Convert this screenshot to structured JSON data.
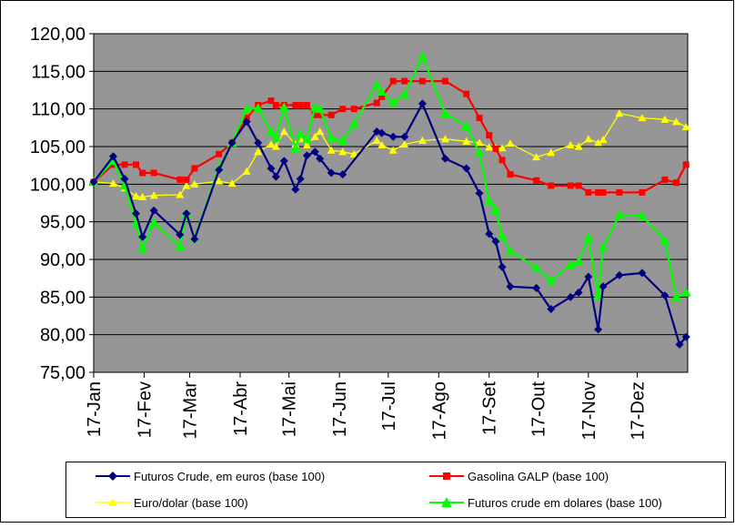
{
  "chart_data": {
    "type": "line",
    "title": "",
    "xlabel": "",
    "ylabel": "",
    "ylim": [
      75,
      120
    ],
    "yticks": [
      "75,00",
      "80,00",
      "85,00",
      "90,00",
      "95,00",
      "100,00",
      "105,00",
      "110,00",
      "115,00",
      "120,00"
    ],
    "xlim": [
      0,
      365
    ],
    "xticks": [
      {
        "x": 0,
        "label": "17-Jan"
      },
      {
        "x": 31,
        "label": "17-Fev"
      },
      {
        "x": 59,
        "label": "17-Mar"
      },
      {
        "x": 90,
        "label": "17-Abr"
      },
      {
        "x": 120,
        "label": "17-Mai"
      },
      {
        "x": 151,
        "label": "17-Jun"
      },
      {
        "x": 181,
        "label": "17-Jul"
      },
      {
        "x": 212,
        "label": "17-Ago"
      },
      {
        "x": 243,
        "label": "17-Set"
      },
      {
        "x": 273,
        "label": "17-Out"
      },
      {
        "x": 304,
        "label": "17-Nov"
      },
      {
        "x": 334,
        "label": "17-Dez"
      }
    ],
    "grid": "horizontal",
    "plot_background": "#969696",
    "legend_position": "bottom",
    "series": [
      {
        "name": "Futuros Crude, em euros (base 100)",
        "color": "#000080",
        "marker": "diamond",
        "points": [
          [
            0,
            100.3
          ],
          [
            12,
            103.7
          ],
          [
            19,
            100.7
          ],
          [
            26,
            96.1
          ],
          [
            30,
            93.0
          ],
          [
            37,
            96.5
          ],
          [
            53,
            93.3
          ],
          [
            57,
            96.1
          ],
          [
            62,
            92.7
          ],
          [
            77,
            101.9
          ],
          [
            85,
            105.5
          ],
          [
            94,
            108.3
          ],
          [
            101,
            105.5
          ],
          [
            109,
            102.1
          ],
          [
            112,
            101.0
          ],
          [
            117,
            103.1
          ],
          [
            124,
            99.3
          ],
          [
            127,
            100.7
          ],
          [
            131,
            103.8
          ],
          [
            136,
            104.3
          ],
          [
            139,
            103.4
          ],
          [
            146,
            101.5
          ],
          [
            153,
            101.3
          ],
          [
            174,
            107.0
          ],
          [
            177,
            106.8
          ],
          [
            184,
            106.3
          ],
          [
            191,
            106.3
          ],
          [
            202,
            110.7
          ],
          [
            216,
            103.4
          ],
          [
            229,
            102.1
          ],
          [
            237,
            98.8
          ],
          [
            243,
            93.4
          ],
          [
            247,
            92.4
          ],
          [
            251,
            89.0
          ],
          [
            256,
            86.4
          ],
          [
            272,
            86.2
          ],
          [
            281,
            83.4
          ],
          [
            293,
            85.0
          ],
          [
            298,
            85.6
          ],
          [
            304,
            87.7
          ],
          [
            310,
            80.7
          ],
          [
            313,
            86.4
          ],
          [
            323,
            87.9
          ],
          [
            337,
            88.2
          ],
          [
            351,
            85.2
          ],
          [
            360,
            78.7
          ],
          [
            364,
            79.7
          ]
        ]
      },
      {
        "name": "Gasolina GALP (base 100)",
        "color": "#ff0000",
        "marker": "square",
        "points": [
          [
            0,
            100.3
          ],
          [
            12,
            102.6
          ],
          [
            19,
            102.6
          ],
          [
            26,
            102.6
          ],
          [
            30,
            101.5
          ],
          [
            37,
            101.5
          ],
          [
            53,
            100.6
          ],
          [
            57,
            100.6
          ],
          [
            62,
            102.1
          ],
          [
            77,
            104.0
          ],
          [
            85,
            105.5
          ],
          [
            94,
            108.8
          ],
          [
            101,
            110.5
          ],
          [
            109,
            111.1
          ],
          [
            112,
            110.5
          ],
          [
            117,
            110.5
          ],
          [
            124,
            110.5
          ],
          [
            127,
            110.5
          ],
          [
            131,
            110.5
          ],
          [
            136,
            109.2
          ],
          [
            139,
            109.2
          ],
          [
            146,
            109.2
          ],
          [
            153,
            110.0
          ],
          [
            160,
            110.0
          ],
          [
            174,
            110.8
          ],
          [
            177,
            111.6
          ],
          [
            184,
            113.7
          ],
          [
            191,
            113.7
          ],
          [
            202,
            113.7
          ],
          [
            216,
            113.7
          ],
          [
            229,
            112.0
          ],
          [
            237,
            108.8
          ],
          [
            243,
            106.5
          ],
          [
            247,
            104.7
          ],
          [
            251,
            103.2
          ],
          [
            256,
            101.3
          ],
          [
            272,
            100.5
          ],
          [
            281,
            99.8
          ],
          [
            293,
            99.8
          ],
          [
            298,
            99.8
          ],
          [
            304,
            98.9
          ],
          [
            310,
            98.9
          ],
          [
            313,
            98.9
          ],
          [
            323,
            98.9
          ],
          [
            337,
            98.9
          ],
          [
            351,
            100.6
          ],
          [
            358,
            100.2
          ],
          [
            364,
            102.6
          ]
        ]
      },
      {
        "name": "Euro/dolar (base 100)",
        "color": "#ffff00",
        "marker": "triangle",
        "points": [
          [
            0,
            100.3
          ],
          [
            12,
            100.1
          ],
          [
            19,
            99.5
          ],
          [
            26,
            98.4
          ],
          [
            30,
            98.3
          ],
          [
            37,
            98.5
          ],
          [
            53,
            98.6
          ],
          [
            57,
            99.8
          ],
          [
            62,
            100.0
          ],
          [
            77,
            100.4
          ],
          [
            85,
            100.1
          ],
          [
            94,
            101.7
          ],
          [
            101,
            104.3
          ],
          [
            109,
            105.3
          ],
          [
            112,
            105.0
          ],
          [
            117,
            107.0
          ],
          [
            124,
            105.3
          ],
          [
            127,
            106.0
          ],
          [
            131,
            105.2
          ],
          [
            136,
            106.3
          ],
          [
            139,
            107.0
          ],
          [
            146,
            104.5
          ],
          [
            153,
            104.3
          ],
          [
            160,
            104.0
          ],
          [
            174,
            105.8
          ],
          [
            177,
            105.2
          ],
          [
            184,
            104.5
          ],
          [
            191,
            105.3
          ],
          [
            202,
            105.8
          ],
          [
            216,
            106.0
          ],
          [
            229,
            105.7
          ],
          [
            237,
            105.5
          ],
          [
            243,
            104.9
          ],
          [
            247,
            104.8
          ],
          [
            251,
            104.8
          ],
          [
            256,
            105.4
          ],
          [
            272,
            103.6
          ],
          [
            281,
            104.2
          ],
          [
            293,
            105.2
          ],
          [
            298,
            105.0
          ],
          [
            304,
            106.0
          ],
          [
            310,
            105.5
          ],
          [
            313,
            105.9
          ],
          [
            323,
            109.4
          ],
          [
            337,
            108.8
          ],
          [
            351,
            108.6
          ],
          [
            358,
            108.3
          ],
          [
            364,
            107.6
          ]
        ]
      },
      {
        "name": "Futuros crude em dolares (base 100)",
        "color": "#00ff00",
        "marker": "triangle",
        "points": [
          [
            0,
            100.3
          ],
          [
            12,
            103.1
          ],
          [
            19,
            99.8
          ],
          [
            26,
            94.8
          ],
          [
            30,
            91.4
          ],
          [
            37,
            94.9
          ],
          [
            53,
            91.7
          ],
          [
            57,
            96.1
          ],
          [
            62,
            92.8
          ],
          [
            77,
            102.2
          ],
          [
            85,
            105.5
          ],
          [
            94,
            110.0
          ],
          [
            101,
            110.1
          ],
          [
            109,
            107.0
          ],
          [
            112,
            106.2
          ],
          [
            117,
            110.2
          ],
          [
            124,
            104.8
          ],
          [
            127,
            106.7
          ],
          [
            131,
            106.0
          ],
          [
            136,
            110.2
          ],
          [
            139,
            110.0
          ],
          [
            146,
            106.1
          ],
          [
            153,
            105.8
          ],
          [
            160,
            108.0
          ],
          [
            174,
            113.2
          ],
          [
            177,
            112.3
          ],
          [
            184,
            110.9
          ],
          [
            191,
            111.9
          ],
          [
            202,
            117.0
          ],
          [
            216,
            109.4
          ],
          [
            229,
            107.7
          ],
          [
            237,
            104.2
          ],
          [
            243,
            97.8
          ],
          [
            247,
            96.6
          ],
          [
            251,
            93.1
          ],
          [
            256,
            91.1
          ],
          [
            272,
            88.9
          ],
          [
            281,
            87.2
          ],
          [
            293,
            89.3
          ],
          [
            298,
            89.7
          ],
          [
            304,
            92.9
          ],
          [
            310,
            85.2
          ],
          [
            313,
            91.6
          ],
          [
            323,
            95.9
          ],
          [
            337,
            95.8
          ],
          [
            351,
            92.5
          ],
          [
            358,
            85.0
          ],
          [
            364,
            85.6
          ]
        ]
      }
    ]
  }
}
